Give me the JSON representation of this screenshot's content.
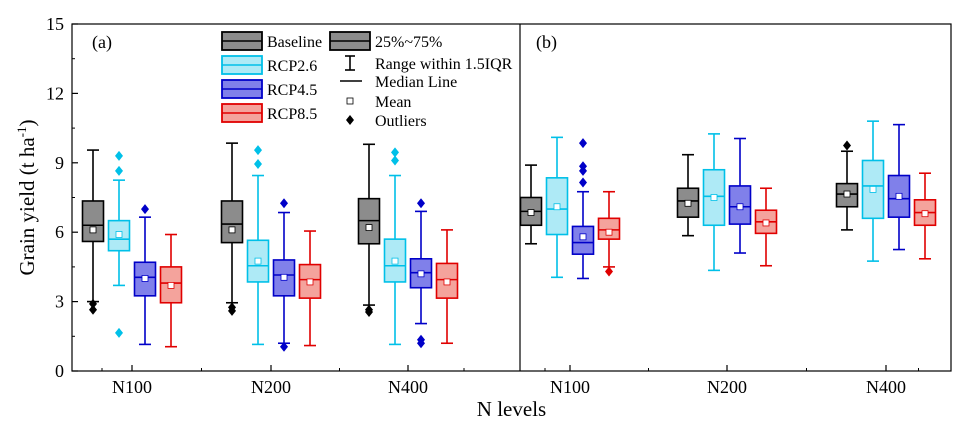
{
  "chart_data": {
    "type": "box",
    "ylabel": "Grain yield (t ha",
    "ylabel_sup": "-1",
    "ylabel_close": ")",
    "xlabel": "N levels",
    "ylim": [
      0,
      15
    ],
    "yticks": [
      0,
      3,
      6,
      9,
      12,
      15
    ],
    "categories": [
      "N100",
      "N200",
      "N400"
    ],
    "legend": {
      "series_entries": [
        "Baseline",
        "RCP2.6",
        "RCP4.5",
        "RCP8.5"
      ],
      "box_label": "25%~75%",
      "whisker_label": "Range within 1.5IQR",
      "median_label": "Median Line",
      "mean_label": "Mean",
      "outlier_label": "Outliers"
    },
    "series_colors": {
      "Baseline": {
        "stroke": "#000000",
        "fill": "#8c8c8c"
      },
      "RCP2.6": {
        "stroke": "#00c0e8",
        "fill": "#aeeaf6"
      },
      "RCP4.5": {
        "stroke": "#0000c8",
        "fill": "#8080ea"
      },
      "RCP8.5": {
        "stroke": "#e00000",
        "fill": "#f4a39c"
      }
    },
    "panels": [
      {
        "label": "(a)",
        "groups": [
          {
            "category": "N100",
            "boxes": [
              {
                "series": "Baseline",
                "min": 3.0,
                "q1": 5.6,
                "median": 6.3,
                "q3": 7.35,
                "max": 9.55,
                "mean": 6.1,
                "outliers": [
                  2.9,
                  2.65
                ]
              },
              {
                "series": "RCP2.6",
                "min": 3.7,
                "q1": 5.2,
                "median": 5.7,
                "q3": 6.5,
                "max": 8.25,
                "mean": 5.9,
                "outliers": [
                  9.3,
                  8.65,
                  1.65
                ]
              },
              {
                "series": "RCP4.5",
                "min": 1.15,
                "q1": 3.25,
                "median": 4.05,
                "q3": 4.7,
                "max": 6.65,
                "mean": 4.0,
                "outliers": [
                  7.0
                ]
              },
              {
                "series": "RCP8.5",
                "min": 1.05,
                "q1": 2.95,
                "median": 3.8,
                "q3": 4.5,
                "max": 5.9,
                "mean": 3.7,
                "outliers": []
              }
            ]
          },
          {
            "category": "N200",
            "boxes": [
              {
                "series": "Baseline",
                "min": 2.95,
                "q1": 5.55,
                "median": 6.35,
                "q3": 7.35,
                "max": 9.85,
                "mean": 6.1,
                "outliers": [
                  2.75,
                  2.6
                ]
              },
              {
                "series": "RCP2.6",
                "min": 1.15,
                "q1": 3.85,
                "median": 4.55,
                "q3": 5.65,
                "max": 8.45,
                "mean": 4.75,
                "outliers": [
                  9.55,
                  8.95
                ]
              },
              {
                "series": "RCP4.5",
                "min": 1.2,
                "q1": 3.25,
                "median": 4.15,
                "q3": 4.8,
                "max": 6.85,
                "mean": 4.05,
                "outliers": [
                  7.25,
                  1.05
                ]
              },
              {
                "series": "RCP8.5",
                "min": 1.1,
                "q1": 3.15,
                "median": 3.95,
                "q3": 4.6,
                "max": 6.05,
                "mean": 3.85,
                "outliers": []
              }
            ]
          },
          {
            "category": "N400",
            "boxes": [
              {
                "series": "Baseline",
                "min": 2.85,
                "q1": 5.5,
                "median": 6.5,
                "q3": 7.45,
                "max": 9.8,
                "mean": 6.2,
                "outliers": [
                  2.65,
                  2.55
                ]
              },
              {
                "series": "RCP2.6",
                "min": 1.15,
                "q1": 3.85,
                "median": 4.55,
                "q3": 5.7,
                "max": 8.45,
                "mean": 4.75,
                "outliers": [
                  9.45,
                  9.1
                ]
              },
              {
                "series": "RCP4.5",
                "min": 2.05,
                "q1": 3.6,
                "median": 4.25,
                "q3": 4.85,
                "max": 6.9,
                "mean": 4.2,
                "outliers": [
                  7.25,
                  1.35,
                  1.2
                ]
              },
              {
                "series": "RCP8.5",
                "min": 1.2,
                "q1": 3.15,
                "median": 3.95,
                "q3": 4.65,
                "max": 6.1,
                "mean": 3.85,
                "outliers": []
              }
            ]
          }
        ]
      },
      {
        "label": "(b)",
        "groups": [
          {
            "category": "N100",
            "boxes": [
              {
                "series": "Baseline",
                "min": 5.5,
                "q1": 6.3,
                "median": 6.9,
                "q3": 7.5,
                "max": 8.9,
                "mean": 6.85,
                "outliers": []
              },
              {
                "series": "RCP2.6",
                "min": 4.05,
                "q1": 5.9,
                "median": 7.0,
                "q3": 8.35,
                "max": 10.1,
                "mean": 7.1,
                "outliers": []
              },
              {
                "series": "RCP4.5",
                "min": 4.0,
                "q1": 5.05,
                "median": 5.55,
                "q3": 6.25,
                "max": 7.75,
                "mean": 5.8,
                "outliers": [
                  9.85,
                  8.85,
                  8.65,
                  8.15
                ]
              },
              {
                "series": "RCP8.5",
                "min": 4.5,
                "q1": 5.7,
                "median": 6.1,
                "q3": 6.6,
                "max": 7.75,
                "mean": 6.0,
                "outliers": [
                  4.3
                ]
              }
            ]
          },
          {
            "category": "N200",
            "boxes": [
              {
                "series": "Baseline",
                "min": 5.85,
                "q1": 6.65,
                "median": 7.35,
                "q3": 7.9,
                "max": 9.35,
                "mean": 7.25,
                "outliers": []
              },
              {
                "series": "RCP2.6",
                "min": 4.35,
                "q1": 6.3,
                "median": 7.55,
                "q3": 8.7,
                "max": 10.25,
                "mean": 7.5,
                "outliers": []
              },
              {
                "series": "RCP4.5",
                "min": 5.1,
                "q1": 6.35,
                "median": 7.1,
                "q3": 8.0,
                "max": 10.05,
                "mean": 7.1,
                "outliers": []
              },
              {
                "series": "RCP8.5",
                "min": 4.55,
                "q1": 5.95,
                "median": 6.45,
                "q3": 6.95,
                "max": 7.9,
                "mean": 6.4,
                "outliers": []
              }
            ]
          },
          {
            "category": "N400",
            "boxes": [
              {
                "series": "Baseline",
                "min": 6.1,
                "q1": 7.1,
                "median": 7.65,
                "q3": 8.1,
                "max": 9.5,
                "mean": 7.65,
                "outliers": [
                  9.75
                ]
              },
              {
                "series": "RCP2.6",
                "min": 4.75,
                "q1": 6.6,
                "median": 8.0,
                "q3": 9.1,
                "max": 10.8,
                "mean": 7.85,
                "outliers": []
              },
              {
                "series": "RCP4.5",
                "min": 5.25,
                "q1": 6.65,
                "median": 7.45,
                "q3": 8.45,
                "max": 10.65,
                "mean": 7.55,
                "outliers": []
              },
              {
                "series": "RCP8.5",
                "min": 4.85,
                "q1": 6.3,
                "median": 6.85,
                "q3": 7.4,
                "max": 8.55,
                "mean": 6.8,
                "outliers": []
              }
            ]
          }
        ]
      }
    ]
  }
}
